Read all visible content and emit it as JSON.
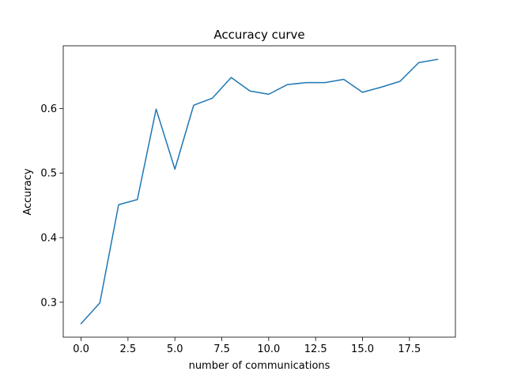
{
  "chart_data": {
    "type": "line",
    "title": "Accuracy curve",
    "xlabel": "number of communications",
    "ylabel": "Accuracy",
    "xlim": [
      -0.95,
      19.95
    ],
    "ylim": [
      0.246,
      0.697
    ],
    "xticks": [
      0.0,
      2.5,
      5.0,
      7.5,
      10.0,
      12.5,
      15.0,
      17.5
    ],
    "xtick_labels": [
      "0.0",
      "2.5",
      "5.0",
      "7.5",
      "10.0",
      "12.5",
      "15.0",
      "17.5"
    ],
    "yticks": [
      0.3,
      0.4,
      0.5,
      0.6
    ],
    "ytick_labels": [
      "0.3",
      "0.4",
      "0.5",
      "0.6"
    ],
    "grid": false,
    "legend": "none",
    "color": "#1f77b4",
    "series": [
      {
        "x": [
          0,
          1,
          2,
          3,
          4,
          5,
          6,
          7,
          8,
          9,
          10,
          11,
          12,
          13,
          14,
          15,
          16,
          17,
          18,
          19
        ],
        "values": [
          0.267,
          0.299,
          0.451,
          0.459,
          0.599,
          0.506,
          0.605,
          0.616,
          0.648,
          0.627,
          0.622,
          0.637,
          0.64,
          0.64,
          0.645,
          0.625,
          0.633,
          0.642,
          0.671,
          0.676
        ]
      }
    ]
  }
}
